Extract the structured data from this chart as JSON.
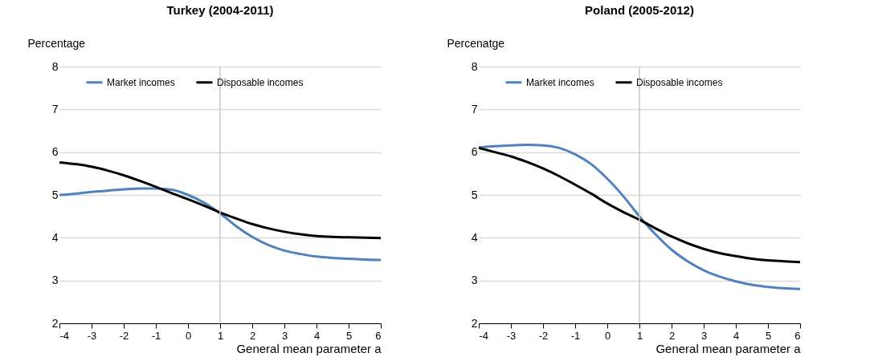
{
  "chart_data": [
    {
      "type": "line",
      "title": "Turkey (2004-2011)",
      "xlabel": "General mean parameter a",
      "ylabel": "Percentage",
      "x": [
        -4,
        -3.5,
        -3,
        -2.5,
        -2,
        -1.5,
        -1,
        -0.5,
        0,
        0.5,
        1,
        1.5,
        2,
        2.5,
        3,
        3.5,
        4,
        4.5,
        5,
        5.5,
        6
      ],
      "series": [
        {
          "name": "Market incomes",
          "color": "#4f81bd",
          "values": [
            5.0,
            5.03,
            5.07,
            5.1,
            5.13,
            5.15,
            5.15,
            5.12,
            5.0,
            4.82,
            4.57,
            4.27,
            4.02,
            3.83,
            3.7,
            3.62,
            3.56,
            3.53,
            3.51,
            3.49,
            3.48
          ]
        },
        {
          "name": "Disposable incomes",
          "color": "#000000",
          "values": [
            5.76,
            5.72,
            5.66,
            5.57,
            5.46,
            5.33,
            5.19,
            5.04,
            4.9,
            4.75,
            4.59,
            4.45,
            4.32,
            4.22,
            4.14,
            4.08,
            4.04,
            4.02,
            4.01,
            4.0,
            3.99
          ]
        }
      ],
      "xlim": [
        -4,
        6
      ],
      "xticks": [
        -4,
        -3,
        -2,
        -1,
        0,
        1,
        2,
        3,
        4,
        5,
        6
      ],
      "ylim": [
        2,
        8
      ],
      "yticks": [
        2,
        3,
        4,
        5,
        6,
        7,
        8
      ],
      "grid": "y",
      "legend": "top",
      "ref_lines": [
        {
          "axis": "x",
          "value": 1,
          "color": "#c8c8c8"
        }
      ]
    },
    {
      "type": "line",
      "title": "Poland (2005-2012)",
      "xlabel": "General mean parameter a",
      "ylabel": "Percenatge",
      "x": [
        -4,
        -3.5,
        -3,
        -2.5,
        -2,
        -1.5,
        -1,
        -0.5,
        0,
        0.5,
        1,
        1.5,
        2,
        2.5,
        3,
        3.5,
        4,
        4.5,
        5,
        5.5,
        6
      ],
      "series": [
        {
          "name": "Market incomes",
          "color": "#4f81bd",
          "values": [
            6.11,
            6.14,
            6.16,
            6.17,
            6.16,
            6.1,
            5.95,
            5.72,
            5.38,
            4.97,
            4.5,
            4.08,
            3.72,
            3.45,
            3.24,
            3.09,
            2.98,
            2.9,
            2.85,
            2.82,
            2.8
          ]
        },
        {
          "name": "Disposable incomes",
          "color": "#000000",
          "values": [
            6.1,
            6.0,
            5.9,
            5.77,
            5.62,
            5.44,
            5.24,
            5.03,
            4.8,
            4.6,
            4.42,
            4.22,
            4.03,
            3.87,
            3.74,
            3.64,
            3.57,
            3.51,
            3.47,
            3.45,
            3.43
          ]
        }
      ],
      "xlim": [
        -4,
        6
      ],
      "xticks": [
        -4,
        -3,
        -2,
        -1,
        0,
        1,
        2,
        3,
        4,
        5,
        6
      ],
      "ylim": [
        2,
        8
      ],
      "yticks": [
        2,
        3,
        4,
        5,
        6,
        7,
        8
      ],
      "grid": "y",
      "legend": "top",
      "ref_lines": [
        {
          "axis": "x",
          "value": 1,
          "color": "#c8c8c8"
        }
      ]
    }
  ]
}
